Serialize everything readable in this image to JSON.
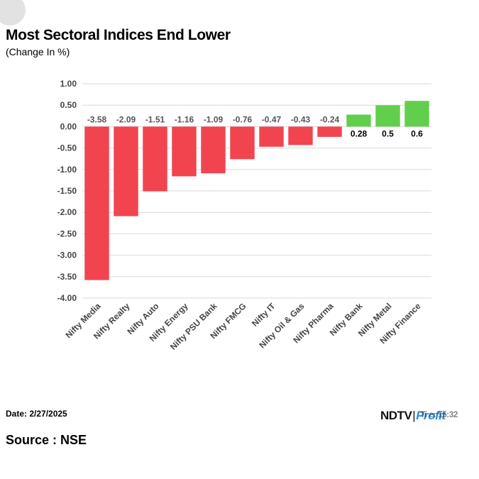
{
  "header": {
    "title": "Most Sectoral Indices End Lower",
    "subtitle": "(Change In %)"
  },
  "footer": {
    "date": "Date: 2/27/2025",
    "source": "Source : NSE",
    "logo_ndtv": "NDTV",
    "logo_profit": "Profit",
    "time_fragment": "Ti  e: 15:32"
  },
  "colors": {
    "negative": "#f1444f",
    "positive": "#62cf4c",
    "grid": "#d9d9d9",
    "axis_text": "#444444"
  },
  "chart_data": {
    "type": "bar",
    "title": "Most Sectoral Indices End Lower",
    "subtitle": "(Change In %)",
    "categories": [
      "Nifty Media",
      "Nifty Realty",
      "Nifty Auto",
      "Nifty Energy",
      "Nifty PSU Bank",
      "Nifty FMCG",
      "Nifty IT",
      "Nifty Oil & Gas",
      "Nifty Pharma",
      "Nifty Bank",
      "Nifty Metal",
      "Nifty Finance"
    ],
    "values": [
      -3.58,
      -2.09,
      -1.51,
      -1.16,
      -1.09,
      -0.76,
      -0.47,
      -0.43,
      -0.24,
      0.28,
      0.5,
      0.6
    ],
    "data_labels": [
      "-3.58",
      "-2.09",
      "-1.51",
      "-1.16",
      "-1.09",
      "-0.76",
      "-0.47",
      "-0.43",
      "-0.24",
      "0.28",
      "0.5",
      "0.6"
    ],
    "ylim": [
      -4.0,
      1.0
    ],
    "yticks": [
      1.0,
      0.5,
      0.0,
      -0.5,
      -1.0,
      -1.5,
      -2.0,
      -2.5,
      -3.0,
      -3.5,
      -4.0
    ],
    "ytick_labels": [
      "1.00",
      "0.50",
      "0.00",
      "-0.50",
      "-1.00",
      "-1.50",
      "-2.00",
      "-2.50",
      "-3.00",
      "-3.50",
      "-4.00"
    ],
    "xlabel": "",
    "ylabel": "",
    "grid": true,
    "legend": "none"
  }
}
